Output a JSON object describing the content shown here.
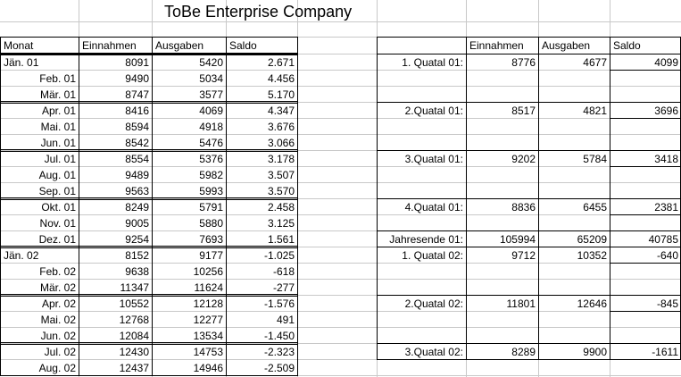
{
  "title": "ToBe Enterprise Company",
  "left_table": {
    "headers": [
      "Monat",
      "Einnahmen",
      "Ausgaben",
      "Saldo"
    ],
    "rows": [
      [
        "Jän. 01",
        "8091",
        "5420",
        "2.671"
      ],
      [
        "Feb. 01",
        "9490",
        "5034",
        "4.456"
      ],
      [
        "Mär. 01",
        "8747",
        "3577",
        "5.170"
      ],
      [
        "Apr. 01",
        "8416",
        "4069",
        "4.347"
      ],
      [
        "Mai. 01",
        "8594",
        "4918",
        "3.676"
      ],
      [
        "Jun. 01",
        "8542",
        "5476",
        "3.066"
      ],
      [
        "Jul. 01",
        "8554",
        "5376",
        "3.178"
      ],
      [
        "Aug. 01",
        "9489",
        "5982",
        "3.507"
      ],
      [
        "Sep. 01",
        "9563",
        "5993",
        "3.570"
      ],
      [
        "Okt. 01",
        "8249",
        "5791",
        "2.458"
      ],
      [
        "Nov. 01",
        "9005",
        "5880",
        "3.125"
      ],
      [
        "Dez. 01",
        "9254",
        "7693",
        "1.561"
      ],
      [
        "Jän. 02",
        "8152",
        "9177",
        "-1.025"
      ],
      [
        "Feb. 02",
        "9638",
        "10256",
        "-618"
      ],
      [
        "Mär. 02",
        "11347",
        "11624",
        "-277"
      ],
      [
        "Apr. 02",
        "10552",
        "12128",
        "-1.576"
      ],
      [
        "Mai. 02",
        "12768",
        "12277",
        "491"
      ],
      [
        "Jun. 02",
        "12084",
        "13534",
        "-1.450"
      ],
      [
        "Jul. 02",
        "12430",
        "14753",
        "-2.323"
      ],
      [
        "Aug. 02",
        "12437",
        "14946",
        "-2.509"
      ]
    ]
  },
  "right_table": {
    "headers": [
      "",
      "Einnahmen",
      "Ausgaben",
      "Saldo"
    ],
    "rows": [
      [
        "1. Quatal 01:",
        "8776",
        "4677",
        "4099"
      ],
      [
        "",
        "",
        "",
        ""
      ],
      [
        "",
        "",
        "",
        ""
      ],
      [
        "2.Quatal 01:",
        "8517",
        "4821",
        "3696"
      ],
      [
        "",
        "",
        "",
        ""
      ],
      [
        "",
        "",
        "",
        ""
      ],
      [
        "3.Quatal 01:",
        "9202",
        "5784",
        "3418"
      ],
      [
        "",
        "",
        "",
        ""
      ],
      [
        "",
        "",
        "",
        ""
      ],
      [
        "4.Quatal 01:",
        "8836",
        "6455",
        "2381"
      ],
      [
        "",
        "",
        "",
        ""
      ],
      [
        "Jahresende 01:",
        "105994",
        "65209",
        "40785"
      ],
      [
        "1. Quatal 02:",
        "9712",
        "10352",
        "-640"
      ],
      [
        "",
        "",
        "",
        ""
      ],
      [
        "",
        "",
        "",
        ""
      ],
      [
        "2.Quatal 02:",
        "11801",
        "12646",
        "-845"
      ],
      [
        "",
        "",
        "",
        ""
      ],
      [
        "",
        "",
        "",
        ""
      ],
      [
        "3.Quatal 02:",
        "8289",
        "9900",
        "-1611"
      ],
      [
        "",
        "",
        "",
        ""
      ]
    ]
  }
}
